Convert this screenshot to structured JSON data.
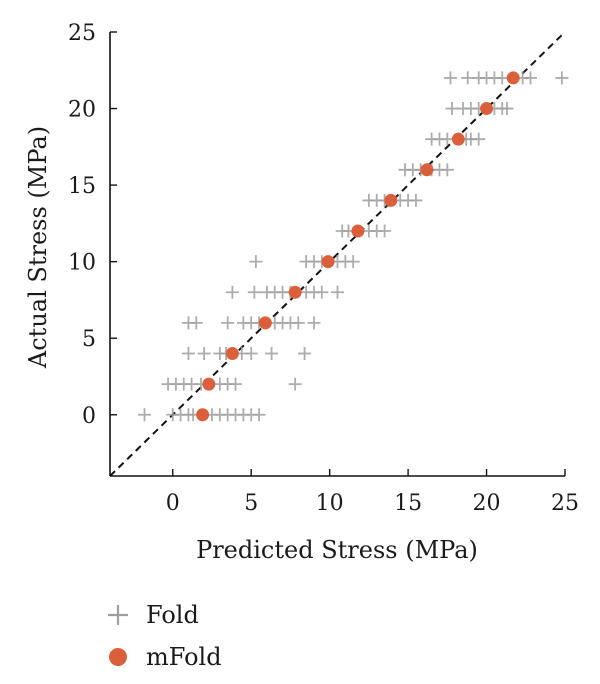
{
  "chart_data": {
    "type": "scatter",
    "xlabel": "Predicted Stress (MPa)",
    "ylabel": "Actual Stress (MPa)",
    "xlim": [
      -4,
      25
    ],
    "ylim": [
      -4,
      25
    ],
    "xticks": [
      0,
      5,
      10,
      15,
      20,
      25
    ],
    "yticks": [
      0,
      5,
      10,
      15,
      20,
      25
    ],
    "grid": false,
    "legend_position": "bottom-left",
    "reference_line": {
      "style": "dashed",
      "color": "#111111",
      "from": [
        -4,
        -4
      ],
      "to": [
        25,
        25
      ]
    },
    "series": [
      {
        "name": "Fold",
        "marker": "plus",
        "color": "#9e9e9e",
        "points": [
          [
            -1.8,
            0
          ],
          [
            0,
            0
          ],
          [
            0.5,
            0
          ],
          [
            1.0,
            0
          ],
          [
            1.3,
            0
          ],
          [
            2.5,
            0
          ],
          [
            3.0,
            0
          ],
          [
            3.5,
            0
          ],
          [
            4.0,
            0
          ],
          [
            4.5,
            0
          ],
          [
            5.0,
            0
          ],
          [
            5.5,
            0
          ],
          [
            -0.3,
            2
          ],
          [
            0.2,
            2
          ],
          [
            0.7,
            2
          ],
          [
            1.2,
            2
          ],
          [
            1.8,
            2
          ],
          [
            3.0,
            2
          ],
          [
            3.5,
            2
          ],
          [
            4.0,
            2
          ],
          [
            7.8,
            2
          ],
          [
            1.0,
            4
          ],
          [
            2.0,
            4
          ],
          [
            3.0,
            4
          ],
          [
            3.4,
            4
          ],
          [
            4.4,
            4
          ],
          [
            5.0,
            4
          ],
          [
            6.3,
            4
          ],
          [
            8.4,
            4
          ],
          [
            1.0,
            6
          ],
          [
            1.5,
            6
          ],
          [
            3.5,
            6
          ],
          [
            4.5,
            6
          ],
          [
            5.0,
            6
          ],
          [
            5.5,
            6
          ],
          [
            6.5,
            6
          ],
          [
            7.0,
            6
          ],
          [
            7.5,
            6
          ],
          [
            8.0,
            6
          ],
          [
            9.0,
            6
          ],
          [
            3.8,
            8
          ],
          [
            5.2,
            8
          ],
          [
            6.0,
            8
          ],
          [
            6.5,
            8
          ],
          [
            7.0,
            8
          ],
          [
            7.5,
            8
          ],
          [
            8.5,
            8
          ],
          [
            9.0,
            8
          ],
          [
            9.5,
            8
          ],
          [
            10.5,
            8
          ],
          [
            5.3,
            10
          ],
          [
            8.5,
            10
          ],
          [
            9.0,
            10
          ],
          [
            9.5,
            10
          ],
          [
            10.5,
            10
          ],
          [
            11.0,
            10
          ],
          [
            11.5,
            10
          ],
          [
            10.8,
            12
          ],
          [
            11.2,
            12
          ],
          [
            12.5,
            12
          ],
          [
            13.0,
            12
          ],
          [
            13.5,
            12
          ],
          [
            12.5,
            14
          ],
          [
            13.0,
            14
          ],
          [
            13.5,
            14
          ],
          [
            14.5,
            14
          ],
          [
            15.0,
            14
          ],
          [
            15.5,
            14
          ],
          [
            14.8,
            16
          ],
          [
            15.3,
            16
          ],
          [
            15.8,
            16
          ],
          [
            16.5,
            16
          ],
          [
            17.0,
            16
          ],
          [
            17.5,
            16
          ],
          [
            16.5,
            18
          ],
          [
            17.0,
            18
          ],
          [
            17.5,
            18
          ],
          [
            18.7,
            18
          ],
          [
            19.0,
            18
          ],
          [
            19.5,
            18
          ],
          [
            17.8,
            20
          ],
          [
            18.5,
            20
          ],
          [
            19.0,
            20
          ],
          [
            19.5,
            20
          ],
          [
            20.5,
            20
          ],
          [
            21.0,
            20
          ],
          [
            21.3,
            20
          ],
          [
            17.7,
            22
          ],
          [
            18.8,
            22
          ],
          [
            19.5,
            22
          ],
          [
            20.0,
            22
          ],
          [
            20.5,
            22
          ],
          [
            21.0,
            22
          ],
          [
            22.3,
            22
          ],
          [
            22.8,
            22
          ],
          [
            24.8,
            22
          ]
        ]
      },
      {
        "name": "mFold",
        "marker": "circle",
        "color": "#d9603a",
        "points": [
          [
            1.9,
            0
          ],
          [
            2.3,
            2
          ],
          [
            3.8,
            4
          ],
          [
            5.9,
            6
          ],
          [
            7.8,
            8
          ],
          [
            9.9,
            10
          ],
          [
            11.8,
            12
          ],
          [
            13.9,
            14
          ],
          [
            16.2,
            16
          ],
          [
            18.2,
            18
          ],
          [
            20.0,
            20
          ],
          [
            21.7,
            22
          ]
        ]
      }
    ]
  }
}
